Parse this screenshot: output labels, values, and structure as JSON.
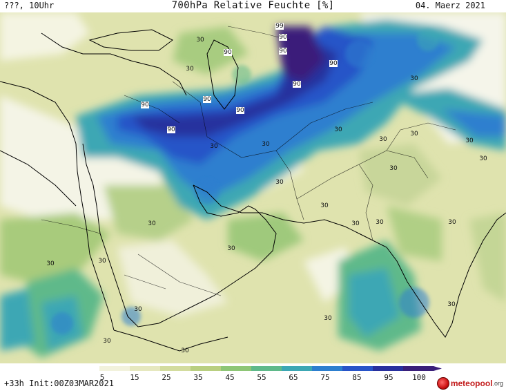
{
  "header": {
    "left": "???, 10Uhr",
    "title": "700hPa Relative Feuchte [%]",
    "date": "04. Maerz 2021"
  },
  "footer": {
    "run_info": "+33h Init:00Z03MAR2021"
  },
  "logo": {
    "name": "meteopool",
    "tld": ".org"
  },
  "colorbar": {
    "ticks": [
      "5",
      "15",
      "25",
      "35",
      "45",
      "55",
      "65",
      "75",
      "85",
      "95",
      "100"
    ],
    "colors": [
      "#ffffff",
      "#f2f2dc",
      "#e6e8bf",
      "#d3dc9e",
      "#b9cf80",
      "#8ec676",
      "#5fb98a",
      "#3ca7b4",
      "#2d7fcf",
      "#2854c8",
      "#28309e",
      "#3a1f7a"
    ]
  },
  "map": {
    "contour_labels": [
      "99",
      "90",
      "90",
      "90",
      "90",
      "90",
      "90",
      "90",
      "90",
      "90",
      "30",
      "30",
      "30",
      "30",
      "30",
      "30",
      "30",
      "30",
      "30",
      "30",
      "30",
      "30",
      "30",
      "30",
      "30",
      "30",
      "30",
      "30",
      "30",
      "30",
      "30",
      "30",
      "30",
      "30",
      "30"
    ]
  }
}
